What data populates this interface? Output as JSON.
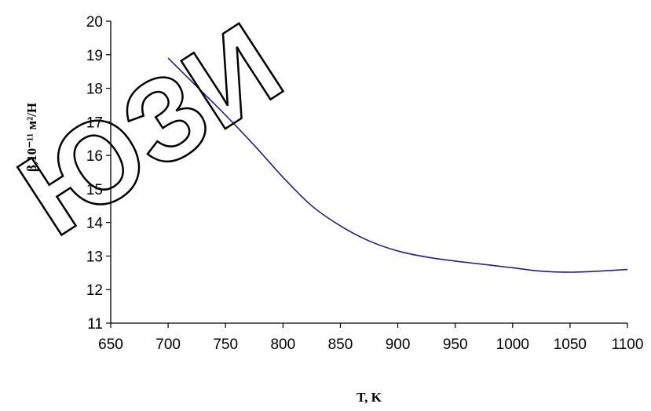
{
  "chart_data": {
    "type": "line",
    "xlabel": "T, K",
    "ylabel": "β,10⁻¹¹ м²/Н",
    "xlim": [
      650,
      1100
    ],
    "ylim": [
      11,
      20
    ],
    "x_ticks": [
      650,
      700,
      750,
      800,
      850,
      900,
      950,
      1000,
      1050,
      1100
    ],
    "y_ticks": [
      11,
      12,
      13,
      14,
      15,
      16,
      17,
      18,
      19,
      20
    ],
    "grid": false,
    "legend": "none",
    "series": [
      {
        "color": "#1f1f8f",
        "x": [
          700,
          725,
          750,
          775,
          800,
          825,
          850,
          875,
          900,
          925,
          950,
          975,
          1000,
          1025,
          1050,
          1075,
          1100
        ],
        "y": [
          18.9,
          18.05,
          17.2,
          16.3,
          15.35,
          14.5,
          13.9,
          13.45,
          13.15,
          12.97,
          12.85,
          12.75,
          12.65,
          12.55,
          12.52,
          12.55,
          12.6
        ]
      }
    ]
  },
  "watermark": {
    "text": "ЮЗИ"
  }
}
